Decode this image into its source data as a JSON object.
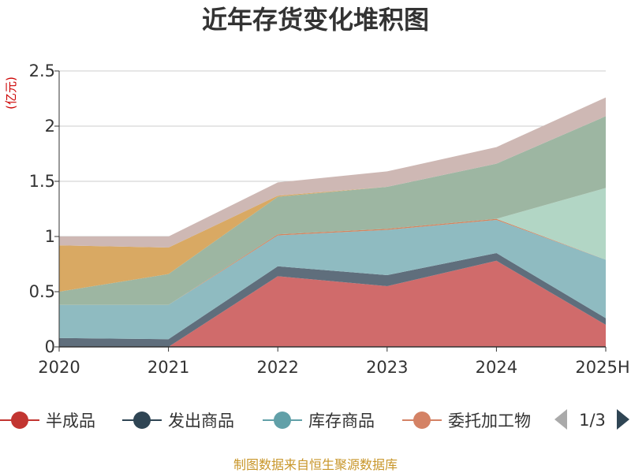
{
  "chart_data": {
    "type": "area",
    "stacked": true,
    "title": "近年存货变化堆积图",
    "unit_label": "(亿元)",
    "categories": [
      "2020",
      "2021",
      "2022",
      "2023",
      "2024",
      "2025H"
    ],
    "y_ticks": [
      "0",
      "0.5",
      "1",
      "1.5",
      "2",
      "2.5"
    ],
    "ylim": [
      0,
      2.5
    ],
    "grid": true,
    "series": [
      {
        "name": "半成品",
        "color": "#d06b6b",
        "values": [
          0,
          0,
          0.64,
          0.55,
          0.78,
          0.2
        ]
      },
      {
        "name": "发出商品",
        "color": "#5f6e7c",
        "values": [
          0.08,
          0.07,
          0.09,
          0.1,
          0.07,
          0.06
        ]
      },
      {
        "name": "库存商品",
        "color": "#8fbbc1",
        "values": [
          0.3,
          0.31,
          0.28,
          0.41,
          0.3,
          0.53
        ]
      },
      {
        "name": "委托加工物资",
        "color": "#d4845f",
        "values": [
          0,
          0,
          0.01,
          0.01,
          0.01,
          0.0
        ]
      },
      {
        "name": "",
        "color": "#b2d6c5",
        "values": [
          0,
          0,
          0,
          0,
          0,
          0.65
        ]
      },
      {
        "name": "",
        "color": "#9db6a2",
        "values": [
          0.12,
          0.28,
          0.34,
          0.38,
          0.5,
          0.65
        ]
      },
      {
        "name": "",
        "color": "#d9a963",
        "values": [
          0.42,
          0.24,
          0.01,
          0,
          0,
          0
        ]
      },
      {
        "name": "",
        "color": "#ceb8b4",
        "values": [
          0.08,
          0.1,
          0.12,
          0.14,
          0.15,
          0.17
        ]
      }
    ],
    "legend": {
      "position": "bottom",
      "visible_items": [
        "半成品",
        "发出商品",
        "库存商品",
        "委托加工物"
      ],
      "page": "1/3"
    },
    "source": "制图数据来自恒生聚源数据库"
  }
}
